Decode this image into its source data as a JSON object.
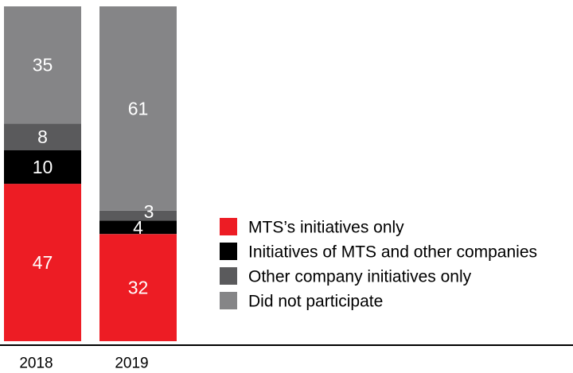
{
  "chart_data": {
    "type": "bar",
    "stacked": true,
    "categories": [
      "2018",
      "2019"
    ],
    "series": [
      {
        "name": "MTS’s initiatives only",
        "color": "#ed1c24",
        "values": [
          47,
          32
        ],
        "labels": [
          "47",
          "32"
        ]
      },
      {
        "name": "Initiatives of MTS and other companies",
        "color": "#000000",
        "values": [
          10,
          4
        ],
        "labels": [
          "10",
          "4"
        ]
      },
      {
        "name": "Other company initiatives only",
        "color": "#5a5a5c",
        "values": [
          8,
          3
        ],
        "labels": [
          "8",
          "3"
        ]
      },
      {
        "name": "Did not participate",
        "color": "#858587",
        "values": [
          35,
          61
        ],
        "labels": [
          "35",
          "61"
        ]
      }
    ],
    "ylim": [
      0,
      100
    ],
    "legend_position": "right",
    "grid": false
  }
}
